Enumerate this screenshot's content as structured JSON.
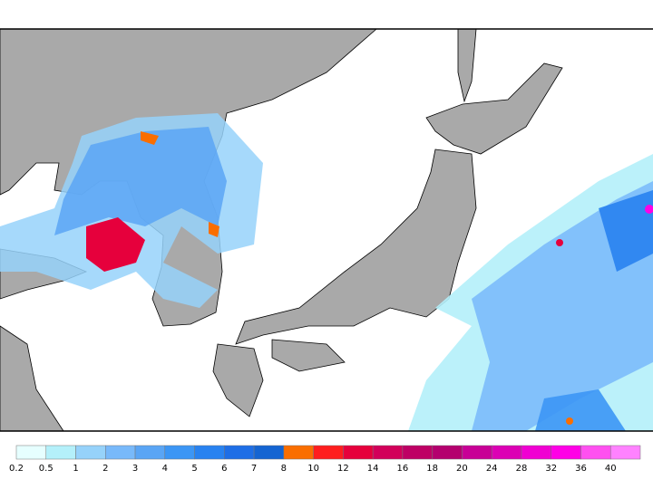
{
  "colorbar": {
    "labels": [
      0.2,
      0.5,
      1,
      2,
      3,
      4,
      5,
      6,
      7,
      8,
      10,
      12,
      14,
      16,
      18,
      20,
      24,
      28,
      32,
      36,
      40
    ],
    "colors": [
      "#e6ffff",
      "#b4f0fa",
      "#96d2fa",
      "#78b9fa",
      "#5aa5f5",
      "#3c96f5",
      "#2882f0",
      "#1e6ee6",
      "#1464d2",
      "#fa6e00",
      "#ff1e1e",
      "#e6003c",
      "#d2005a",
      "#be0064",
      "#b4006e",
      "#c80096",
      "#dc00b4",
      "#f000d2",
      "#ff00e6",
      "#ff50f0",
      "#ff82ff"
    ]
  }
}
